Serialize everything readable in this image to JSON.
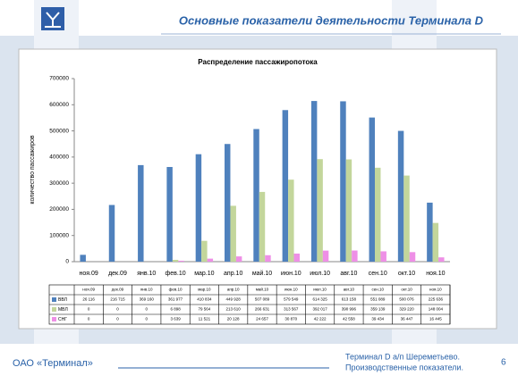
{
  "header": {
    "title": "Основные показатели деятельности Терминала D"
  },
  "footer": {
    "company": "ОАО «Терминал»",
    "note_line1": "Терминал D а/п Шереметьево.",
    "note_line2": "Производственные показатели.",
    "page": "6"
  },
  "chart_data": {
    "type": "bar",
    "title": "Распределение пассажиропотока",
    "y_label": "количество пассажиров",
    "categories": [
      "ноя.09",
      "дек.09",
      "янв.10",
      "фев.10",
      "мар.10",
      "апр.10",
      "май.10",
      "июн.10",
      "июл.10",
      "авг.10",
      "сен.10",
      "окт.10",
      "ноя.10"
    ],
    "series": [
      {
        "name": "ВВЛ",
        "color": "#4f81bd",
        "values": [
          26116,
          216715,
          369160,
          361977,
          410834,
          449928,
          507089,
          579549,
          614325,
          613158,
          551089,
          500076,
          225636
        ],
        "value_labels": [
          "26 116",
          "216 715",
          "369 160",
          "361 977",
          "410 834",
          "449 928",
          "507 089",
          "579 549",
          "614 325",
          "613 158",
          "551 089",
          "500 076",
          "225 636"
        ]
      },
      {
        "name": "МВЛ",
        "color": "#c3d69b",
        "values": [
          0,
          0,
          0,
          6898,
          79564,
          213610,
          266631,
          313567,
          392017,
          390996,
          359139,
          329220,
          148004
        ],
        "value_labels": [
          "0",
          "0",
          "0",
          "6 898",
          "79 564",
          "213 610",
          "266 631",
          "313 567",
          "392 017",
          "390 996",
          "359 139",
          "329 220",
          "148 004"
        ]
      },
      {
        "name": "СНГ",
        "color": "#ee8fe6",
        "values": [
          0,
          0,
          0,
          3639,
          11521,
          20128,
          24657,
          30870,
          42222,
          42558,
          39434,
          36447,
          16445
        ],
        "value_labels": [
          "0",
          "0",
          "0",
          "3 639",
          "11 521",
          "20 128",
          "24 657",
          "30 870",
          "42 222",
          "42 558",
          "39 434",
          "36 447",
          "16 445"
        ]
      }
    ],
    "ylim": [
      0,
      700000
    ],
    "yticks": [
      0,
      100000,
      200000,
      300000,
      400000,
      500000,
      600000,
      700000
    ],
    "grid": false
  }
}
